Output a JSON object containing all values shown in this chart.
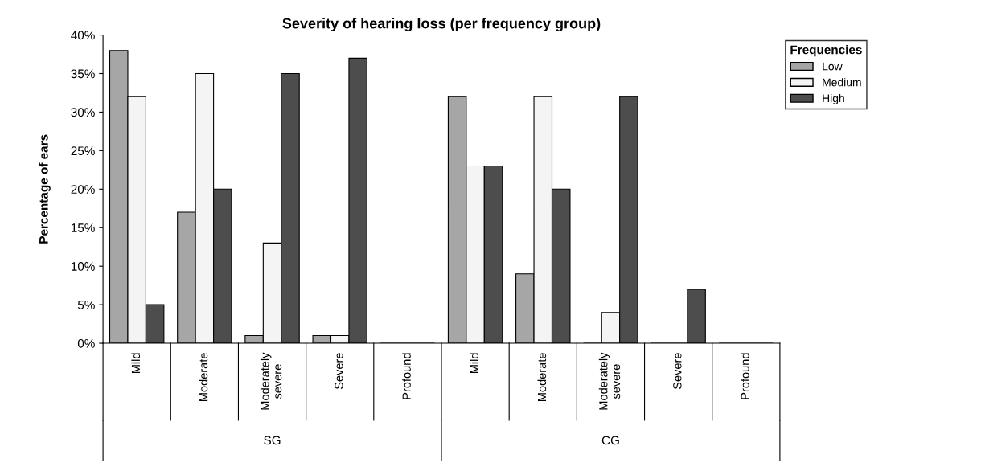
{
  "chart_data": {
    "type": "bar",
    "title": "Severity of hearing loss (per frequency group)",
    "ylabel": "Percentage of ears",
    "legend_title": "Frequencies",
    "legend": "top right",
    "grid": false,
    "categories": [
      "Mild",
      "Moderate",
      "Moderately\nsevere",
      "Severe",
      "Profound",
      "Mild",
      "Moderate",
      "Moderately\nsevere",
      "Severe",
      "Profound"
    ],
    "annotations": [
      "SG",
      "CG"
    ],
    "ylim": [
      0,
      40
    ],
    "yticks": [
      {
        "value": 0,
        "label": "0%"
      },
      {
        "value": 5,
        "label": "5%"
      },
      {
        "value": 10,
        "label": "10%"
      },
      {
        "value": 15,
        "label": "15%"
      },
      {
        "value": 20,
        "label": "20%"
      },
      {
        "value": 25,
        "label": "25%"
      },
      {
        "value": 30,
        "label": "30%"
      },
      {
        "value": 35,
        "label": "35%"
      },
      {
        "value": 40,
        "label": "40%"
      }
    ],
    "series": [
      {
        "name": "Low",
        "color": "#a6a6a6",
        "values": [
          38,
          17,
          1,
          1,
          0,
          32,
          9,
          0,
          0,
          0
        ]
      },
      {
        "name": "Medium",
        "color": "#f4f4f4",
        "values": [
          32,
          35,
          13,
          1,
          0,
          23,
          32,
          4,
          0,
          0
        ]
      },
      {
        "name": "High",
        "color": "#4d4d4d",
        "values": [
          5,
          20,
          35,
          37,
          0,
          23,
          20,
          32,
          7,
          0
        ]
      }
    ]
  }
}
